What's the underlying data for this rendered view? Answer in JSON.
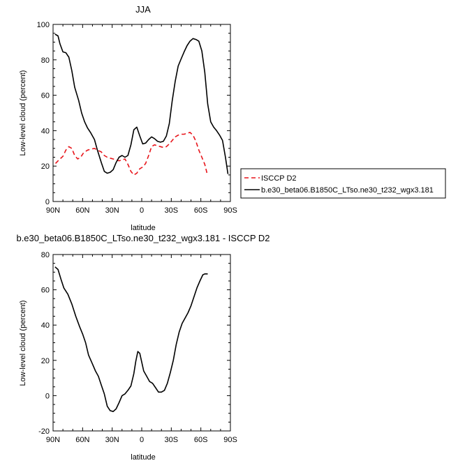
{
  "chart_data": [
    {
      "type": "line",
      "title": "JJA",
      "xlabel": "latitude",
      "ylabel": "Low-level cloud (percent)",
      "xlim": [
        90,
        -90
      ],
      "ylim": [
        0,
        100
      ],
      "x_ticks": [
        90,
        60,
        30,
        0,
        -30,
        -60,
        -90
      ],
      "x_tick_labels": [
        "90N",
        "60N",
        "30N",
        "0",
        "30S",
        "60S",
        "90S"
      ],
      "y_ticks": [
        0,
        20,
        40,
        60,
        80,
        100
      ],
      "y_tick_labels": [
        "0",
        "20",
        "40",
        "60",
        "80",
        "100"
      ],
      "grid": false,
      "legend": "right",
      "series": [
        {
          "name": "ISCCP D2",
          "color": "#e8141a",
          "style": "dashed",
          "x": [
            87.5,
            84,
            80,
            77,
            74,
            71,
            68,
            65,
            62,
            59,
            55,
            52,
            48,
            45,
            41,
            38,
            35,
            32,
            29,
            26,
            23,
            20,
            17,
            14,
            11,
            8,
            5,
            2,
            -1,
            -4,
            -7,
            -10,
            -13,
            -16,
            -19,
            -22,
            -25,
            -28,
            -31,
            -34,
            -37,
            -40,
            -43,
            -46,
            -49,
            -52,
            -55,
            -58,
            -61,
            -64,
            -66.5
          ],
          "y": [
            21.5,
            23.5,
            25.5,
            29,
            31,
            30,
            26,
            24,
            25,
            27.5,
            29,
            29.5,
            30,
            29,
            28,
            26,
            25,
            24.5,
            24,
            23.5,
            23,
            23.5,
            24,
            21,
            17,
            15,
            16,
            18.5,
            19.5,
            21.5,
            26,
            31,
            32,
            31.5,
            31,
            30.5,
            31,
            32.5,
            34.5,
            36.5,
            37.5,
            38,
            38,
            38.5,
            39,
            37.5,
            34,
            29,
            25,
            21,
            15.5
          ]
        },
        {
          "name": "b.e30_beta06.B1850C_LTso.ne30_t232_wgx3.181",
          "color": "#000000",
          "style": "solid",
          "x": [
            88,
            85,
            83,
            80,
            77,
            74,
            71,
            68,
            64,
            61,
            58,
            55,
            52,
            48,
            45,
            41,
            38,
            35,
            32,
            29,
            26,
            23,
            20,
            17,
            14,
            11,
            8,
            5,
            2,
            -1,
            -4,
            -7,
            -10,
            -13,
            -16,
            -19,
            -22,
            -25,
            -28,
            -31,
            -34,
            -37,
            -40,
            -43,
            -46,
            -49,
            -52,
            -55,
            -58,
            -61,
            -64,
            -67,
            -70,
            -73,
            -76,
            -79,
            -82,
            -85,
            -87.5
          ],
          "y": [
            94.5,
            93.5,
            89,
            84.5,
            84,
            81.5,
            74,
            64.5,
            57,
            50,
            45,
            41.5,
            39,
            35,
            29,
            22,
            17,
            16,
            16.5,
            18,
            22,
            25,
            26,
            25,
            26,
            32,
            40.5,
            42,
            37,
            32.5,
            33,
            35,
            36.5,
            35.5,
            34,
            33.5,
            34,
            37,
            44,
            57,
            68,
            76.5,
            80.5,
            84.5,
            88,
            90.5,
            92,
            91.5,
            90.5,
            85,
            73,
            55,
            45,
            42,
            40,
            37.5,
            34.5,
            25,
            15.5
          ]
        }
      ]
    },
    {
      "type": "line",
      "title": "b.e30_beta06.B1850C_LTso.ne30_t232_wgx3.181 - ISCCP D2",
      "xlabel": "latitude",
      "ylabel": "Low-level cloud (percent)",
      "xlim": [
        90,
        -90
      ],
      "ylim": [
        -20,
        80
      ],
      "x_ticks": [
        90,
        60,
        30,
        0,
        -30,
        -60,
        -90
      ],
      "x_tick_labels": [
        "90N",
        "60N",
        "30N",
        "0",
        "30S",
        "60S",
        "90S"
      ],
      "y_ticks": [
        -20,
        0,
        20,
        40,
        60,
        80
      ],
      "y_tick_labels": [
        "-20",
        "0",
        "20",
        "40",
        "60",
        "80"
      ],
      "grid": false,
      "series": [
        {
          "color": "#000000",
          "style": "solid",
          "x": [
            88,
            85,
            82,
            79,
            75,
            71,
            67,
            63,
            60,
            57,
            54,
            50,
            47,
            44,
            41,
            38,
            35,
            32,
            29,
            26,
            23,
            20,
            17,
            14,
            11,
            8,
            6,
            4,
            2,
            0,
            -2,
            -5,
            -8,
            -11,
            -14,
            -17,
            -20,
            -23,
            -26,
            -29,
            -32,
            -35,
            -38,
            -41,
            -44,
            -47,
            -50,
            -53,
            -56,
            -59,
            -62,
            -64,
            -67
          ],
          "y": [
            73,
            71.5,
            66,
            61,
            57.5,
            52,
            45,
            39,
            35,
            30,
            23,
            18,
            14,
            11,
            6,
            1,
            -6,
            -8.5,
            -9,
            -7.5,
            -4,
            0,
            1,
            3,
            5.5,
            12.5,
            19.5,
            25,
            24,
            19,
            14,
            11,
            8,
            7,
            4.5,
            2,
            2,
            3,
            7,
            13,
            20,
            29,
            36,
            41,
            44,
            47,
            51,
            56,
            61,
            65,
            68.5,
            69,
            69
          ]
        }
      ]
    }
  ]
}
